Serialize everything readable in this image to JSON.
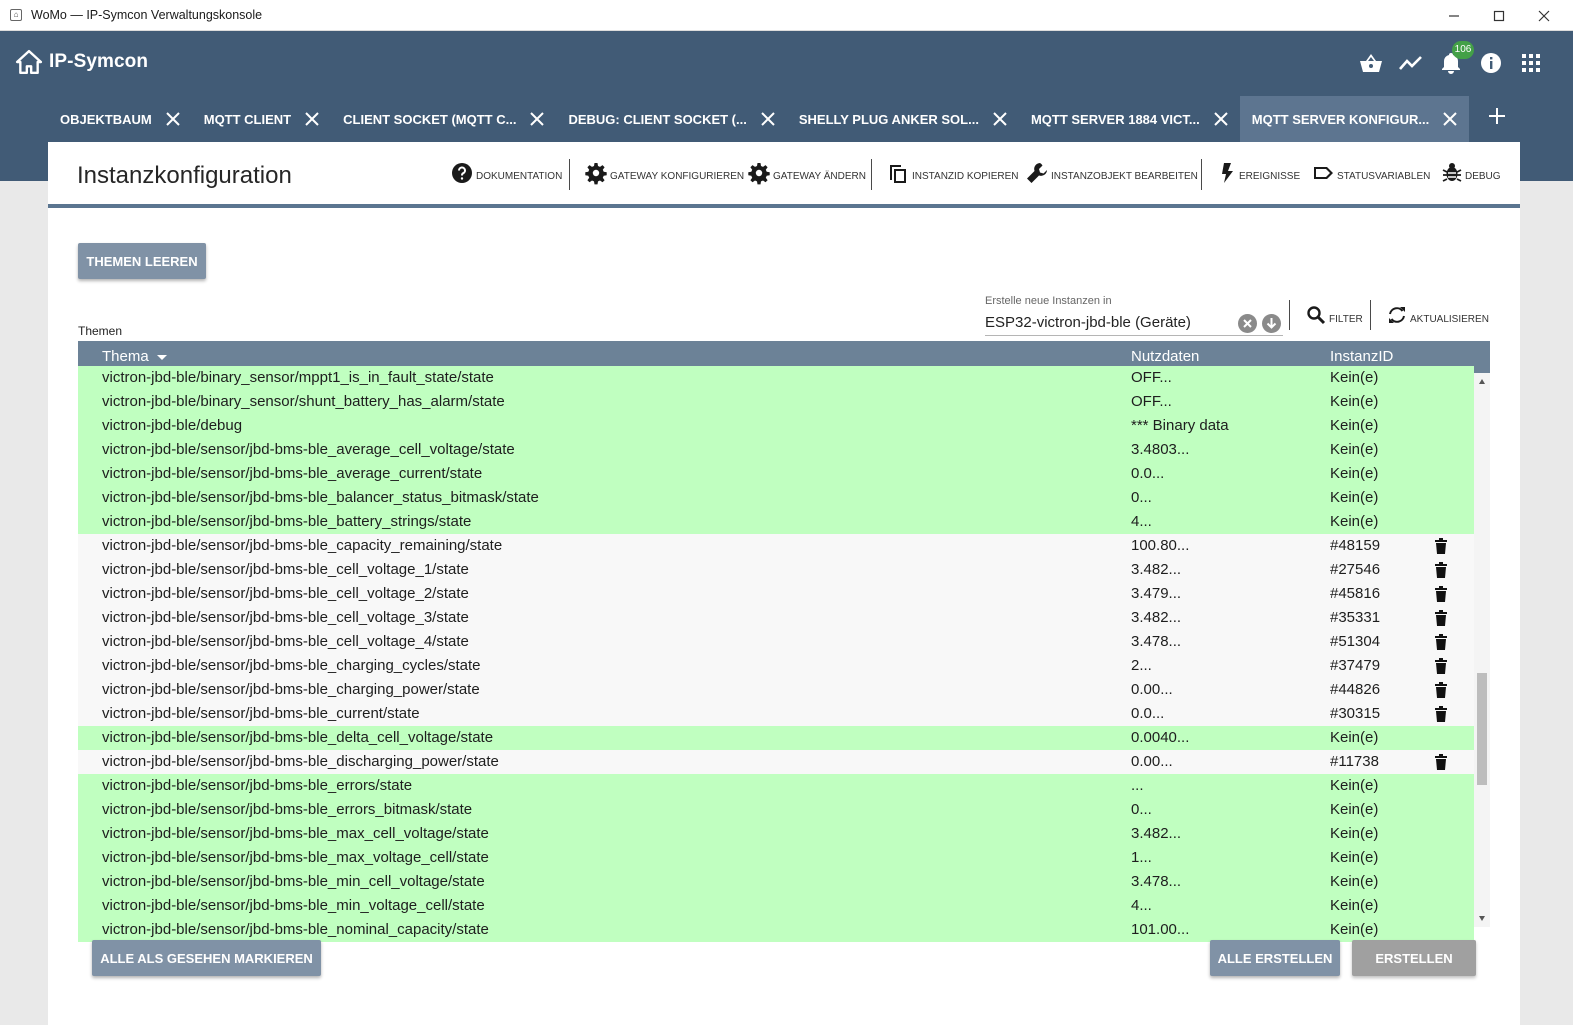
{
  "window": {
    "title": "WoMo — IP-Symcon Verwaltungskonsole",
    "icon": "home-icon"
  },
  "header": {
    "brand": "IP-Symcon",
    "notification_count": "106",
    "icons": [
      "basket-icon",
      "trend-icon",
      "bell-icon",
      "info-icon",
      "apps-grid-icon"
    ]
  },
  "tabs": [
    {
      "label": "OBJEKTBAUM",
      "active": false
    },
    {
      "label": "MQTT CLIENT",
      "active": false
    },
    {
      "label": "CLIENT SOCKET (MQTT C...",
      "active": false
    },
    {
      "label": "DEBUG: CLIENT SOCKET (...",
      "active": false
    },
    {
      "label": "SHELLY PLUG ANKER SOL...",
      "active": false
    },
    {
      "label": "MQTT SERVER 1884 VICT...",
      "active": false
    },
    {
      "label": "MQTT SERVER KONFIGUR...",
      "active": true
    }
  ],
  "page": {
    "title": "Instanzkonfiguration",
    "toolbar": {
      "docs": "DOKUMENTATION",
      "gateway_config": "GATEWAY KONFIGURIEREN",
      "gateway_change": "GATEWAY ÄNDERN",
      "copy_id": "INSTANZID KOPIEREN",
      "edit_object": "INSTANZOBJEKT BEARBEITEN",
      "events": "EREIGNISSE",
      "status_vars": "STATUSVARIABLEN",
      "debug": "DEBUG"
    },
    "clear_topics": "THEMEN LEEREN",
    "topics_label": "Themen",
    "create_in_label": "Erstelle neue Instanzen in",
    "create_in_value": "ESP32-victron-jbd-ble (Geräte)",
    "filter": "FILTER",
    "refresh": "AKTUALISIEREN",
    "mark_all_seen": "ALLE ALS GESEHEN MARKIEREN",
    "create_all": "ALLE ERSTELLEN",
    "create": "ERSTELLEN"
  },
  "table": {
    "columns": [
      "Thema",
      "Nutzdaten",
      "InstanzID"
    ],
    "accent_colors": {
      "new": "#c0ffc0",
      "existing": "#f8f8f8"
    },
    "rows": [
      {
        "topic": "victron-jbd-ble/binary_sensor/mppt1_is_in_fault_state/state",
        "payload": "OFF...",
        "id": "Kein(e)",
        "status": "new"
      },
      {
        "topic": "victron-jbd-ble/binary_sensor/shunt_battery_has_alarm/state",
        "payload": "OFF...",
        "id": "Kein(e)",
        "status": "new"
      },
      {
        "topic": "victron-jbd-ble/debug",
        "payload": "*** Binary data",
        "id": "Kein(e)",
        "status": "new"
      },
      {
        "topic": "victron-jbd-ble/sensor/jbd-bms-ble_average_cell_voltage/state",
        "payload": "3.4803...",
        "id": "Kein(e)",
        "status": "new"
      },
      {
        "topic": "victron-jbd-ble/sensor/jbd-bms-ble_average_current/state",
        "payload": "0.0...",
        "id": "Kein(e)",
        "status": "new"
      },
      {
        "topic": "victron-jbd-ble/sensor/jbd-bms-ble_balancer_status_bitmask/state",
        "payload": "0...",
        "id": "Kein(e)",
        "status": "new"
      },
      {
        "topic": "victron-jbd-ble/sensor/jbd-bms-ble_battery_strings/state",
        "payload": "4...",
        "id": "Kein(e)",
        "status": "new"
      },
      {
        "topic": "victron-jbd-ble/sensor/jbd-bms-ble_capacity_remaining/state",
        "payload": "100.80...",
        "id": "#48159",
        "status": "existing"
      },
      {
        "topic": "victron-jbd-ble/sensor/jbd-bms-ble_cell_voltage_1/state",
        "payload": "3.482...",
        "id": "#27546",
        "status": "existing"
      },
      {
        "topic": "victron-jbd-ble/sensor/jbd-bms-ble_cell_voltage_2/state",
        "payload": "3.479...",
        "id": "#45816",
        "status": "existing"
      },
      {
        "topic": "victron-jbd-ble/sensor/jbd-bms-ble_cell_voltage_3/state",
        "payload": "3.482...",
        "id": "#35331",
        "status": "existing"
      },
      {
        "topic": "victron-jbd-ble/sensor/jbd-bms-ble_cell_voltage_4/state",
        "payload": "3.478...",
        "id": "#51304",
        "status": "existing"
      },
      {
        "topic": "victron-jbd-ble/sensor/jbd-bms-ble_charging_cycles/state",
        "payload": "2...",
        "id": "#37479",
        "status": "existing"
      },
      {
        "topic": "victron-jbd-ble/sensor/jbd-bms-ble_charging_power/state",
        "payload": "0.00...",
        "id": "#44826",
        "status": "existing"
      },
      {
        "topic": "victron-jbd-ble/sensor/jbd-bms-ble_current/state",
        "payload": "0.0...",
        "id": "#30315",
        "status": "existing"
      },
      {
        "topic": "victron-jbd-ble/sensor/jbd-bms-ble_delta_cell_voltage/state",
        "payload": "0.0040...",
        "id": "Kein(e)",
        "status": "new"
      },
      {
        "topic": "victron-jbd-ble/sensor/jbd-bms-ble_discharging_power/state",
        "payload": "0.00...",
        "id": "#11738",
        "status": "existing"
      },
      {
        "topic": "victron-jbd-ble/sensor/jbd-bms-ble_errors/state",
        "payload": "...",
        "id": "Kein(e)",
        "status": "new"
      },
      {
        "topic": "victron-jbd-ble/sensor/jbd-bms-ble_errors_bitmask/state",
        "payload": "0...",
        "id": "Kein(e)",
        "status": "new"
      },
      {
        "topic": "victron-jbd-ble/sensor/jbd-bms-ble_max_cell_voltage/state",
        "payload": "3.482...",
        "id": "Kein(e)",
        "status": "new"
      },
      {
        "topic": "victron-jbd-ble/sensor/jbd-bms-ble_max_voltage_cell/state",
        "payload": "1...",
        "id": "Kein(e)",
        "status": "new"
      },
      {
        "topic": "victron-jbd-ble/sensor/jbd-bms-ble_min_cell_voltage/state",
        "payload": "3.478...",
        "id": "Kein(e)",
        "status": "new"
      },
      {
        "topic": "victron-jbd-ble/sensor/jbd-bms-ble_min_voltage_cell/state",
        "payload": "4...",
        "id": "Kein(e)",
        "status": "new"
      },
      {
        "topic": "victron-jbd-ble/sensor/jbd-bms-ble_nominal_capacity/state",
        "payload": "101.00...",
        "id": "Kein(e)",
        "status": "new"
      }
    ]
  }
}
